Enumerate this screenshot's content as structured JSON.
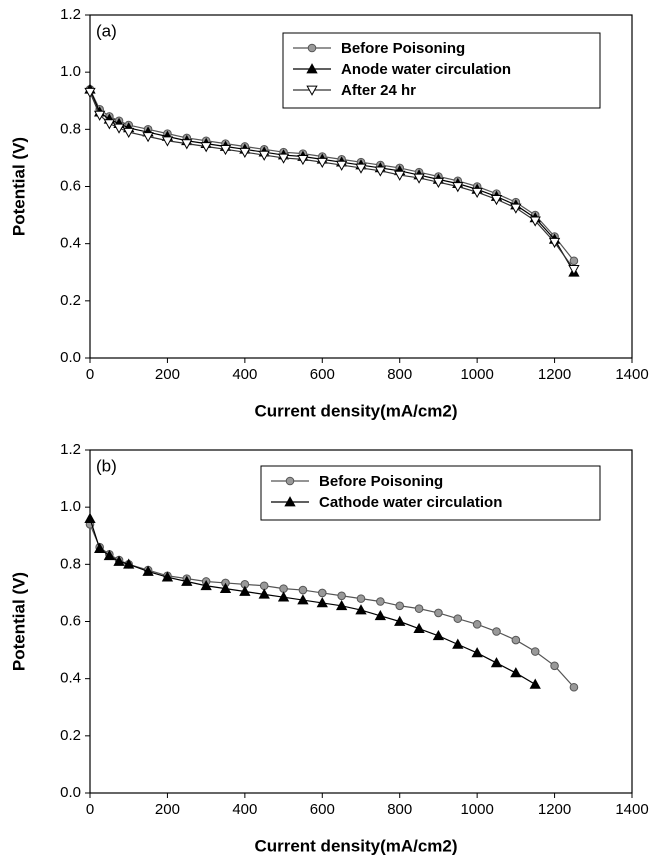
{
  "chart_data": [
    {
      "type": "line",
      "panel_label": "(a)",
      "x_label": "Current density(mA/cm2)",
      "y_label": "Potential (V)",
      "x": [
        0,
        25,
        50,
        75,
        100,
        150,
        200,
        250,
        300,
        350,
        400,
        450,
        500,
        550,
        600,
        650,
        700,
        750,
        800,
        850,
        900,
        950,
        1000,
        1050,
        1100,
        1150,
        1200,
        1250
      ],
      "series": [
        {
          "name": "Before Poisoning",
          "color": "#555555",
          "marker": "circle",
          "marker_color": "#999999",
          "values": [
            0.94,
            0.87,
            0.845,
            0.83,
            0.815,
            0.8,
            0.785,
            0.77,
            0.76,
            0.75,
            0.74,
            0.73,
            0.72,
            0.715,
            0.705,
            0.695,
            0.685,
            0.675,
            0.665,
            0.65,
            0.635,
            0.62,
            0.6,
            0.575,
            0.545,
            0.5,
            0.425,
            0.34
          ]
        },
        {
          "name": "Anode water circulation",
          "color": "#000000",
          "marker": "triangle",
          "marker_color": "#000000",
          "values": [
            0.94,
            0.86,
            0.835,
            0.82,
            0.805,
            0.79,
            0.775,
            0.76,
            0.75,
            0.74,
            0.73,
            0.72,
            0.71,
            0.705,
            0.695,
            0.685,
            0.675,
            0.665,
            0.655,
            0.64,
            0.625,
            0.61,
            0.59,
            0.565,
            0.535,
            0.49,
            0.415,
            0.3
          ]
        },
        {
          "name": "After 24 hr",
          "color": "#333333",
          "marker": "triangle-down",
          "marker_color": "#ffffff",
          "values": [
            0.93,
            0.85,
            0.82,
            0.805,
            0.79,
            0.775,
            0.76,
            0.75,
            0.74,
            0.73,
            0.72,
            0.71,
            0.7,
            0.695,
            0.685,
            0.675,
            0.665,
            0.655,
            0.64,
            0.63,
            0.615,
            0.6,
            0.58,
            0.555,
            0.525,
            0.48,
            0.405,
            0.31
          ]
        }
      ],
      "xlim": [
        0,
        1400
      ],
      "ylim": [
        0,
        1.2
      ],
      "xticks": [
        0,
        200,
        400,
        600,
        800,
        1000,
        1200,
        1400
      ],
      "yticks": [
        {
          "value": 0,
          "label": "0.0"
        },
        {
          "value": 0.2,
          "label": "0.2"
        },
        {
          "value": 0.4,
          "label": "0.4"
        },
        {
          "value": 0.6,
          "label": "0.6"
        },
        {
          "value": 0.8,
          "label": "0.8"
        },
        {
          "value": 1,
          "label": "1.0"
        },
        {
          "value": 1.2,
          "label": "1.2"
        }
      ],
      "legend": "upper right",
      "grid": false
    },
    {
      "type": "line",
      "panel_label": "(b)",
      "x_label": "Current density(mA/cm2)",
      "y_label": "Potential (V)",
      "x": [
        0,
        25,
        50,
        75,
        100,
        150,
        200,
        250,
        300,
        350,
        400,
        450,
        500,
        550,
        600,
        650,
        700,
        750,
        800,
        850,
        900,
        950,
        1000,
        1050,
        1100,
        1150,
        1200,
        1250
      ],
      "series": [
        {
          "name": "Before Poisoning",
          "color": "#555555",
          "marker": "circle",
          "marker_color": "#999999",
          "values": [
            0.94,
            0.86,
            0.835,
            0.815,
            0.8,
            0.78,
            0.76,
            0.75,
            0.74,
            0.735,
            0.73,
            0.725,
            0.715,
            0.71,
            0.7,
            0.69,
            0.68,
            0.67,
            0.655,
            0.645,
            0.63,
            0.61,
            0.59,
            0.565,
            0.535,
            0.495,
            0.445,
            0.37
          ]
        },
        {
          "name": "Cathode water circulation",
          "color": "#000000",
          "marker": "triangle",
          "marker_color": "#000000",
          "values": [
            0.96,
            0.855,
            0.83,
            0.81,
            0.8,
            0.775,
            0.755,
            0.74,
            0.725,
            0.715,
            0.705,
            0.695,
            0.685,
            0.675,
            0.665,
            0.655,
            0.64,
            0.62,
            0.6,
            0.575,
            0.55,
            0.52,
            0.49,
            0.455,
            0.42,
            0.38,
            null,
            null
          ]
        }
      ],
      "xlim": [
        0,
        1400
      ],
      "ylim": [
        0,
        1.2
      ],
      "xticks": [
        0,
        200,
        400,
        600,
        800,
        1000,
        1200,
        1400
      ],
      "yticks": [
        {
          "value": 0,
          "label": "0.0"
        },
        {
          "value": 0.2,
          "label": "0.2"
        },
        {
          "value": 0.4,
          "label": "0.4"
        },
        {
          "value": 0.6,
          "label": "0.6"
        },
        {
          "value": 0.8,
          "label": "0.8"
        },
        {
          "value": 1,
          "label": "1.0"
        },
        {
          "value": 1.2,
          "label": "1.2"
        }
      ],
      "legend": "upper right",
      "grid": false
    }
  ]
}
